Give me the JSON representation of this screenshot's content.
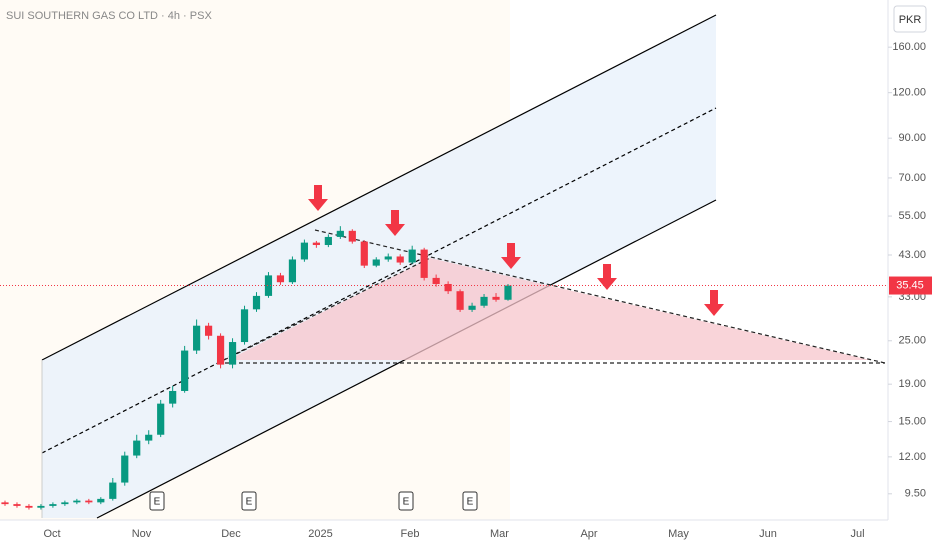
{
  "chart_data": {
    "type": "candlestick",
    "title": "SUI SOUTHERN GAS CO LTD · 4h · PSX",
    "currency": "PKR",
    "log_scale": true,
    "up_color": "#089981",
    "down_color": "#f23645",
    "categories": [
      "Oct",
      "Nov",
      "Dec",
      "2025",
      "Feb",
      "Mar",
      "Apr",
      "May",
      "Jun",
      "Jul"
    ],
    "open": [
      9.0,
      8.9,
      8.8,
      8.7,
      8.8,
      8.9,
      9.0,
      9.1,
      9.0,
      9.2,
      10.2,
      12.1,
      13.3,
      13.8,
      16.8,
      18.2,
      23.5,
      27.5,
      25.8,
      21.5,
      24.8,
      30.5,
      33.2,
      37.8,
      36.2,
      41.8,
      46.5,
      45.8,
      48.2,
      50.1,
      46.8,
      40.2,
      41.8,
      42.6,
      41.0,
      44.5,
      37.2,
      35.8,
      34.2,
      30.4,
      31.2,
      33.0,
      32.4
    ],
    "high": [
      9.1,
      9.0,
      8.9,
      8.9,
      9.0,
      9.1,
      9.2,
      9.2,
      9.3,
      10.5,
      12.4,
      13.8,
      14.2,
      17.2,
      18.8,
      24.2,
      28.6,
      28.0,
      26.2,
      25.4,
      31.2,
      34.0,
      38.6,
      38.4,
      42.6,
      47.4,
      47.0,
      49.0,
      51.6,
      50.6,
      47.2,
      42.4,
      43.4,
      43.2,
      45.6,
      45.0,
      38.0,
      36.4,
      34.6,
      31.8,
      33.6,
      33.8,
      35.8
    ],
    "low": [
      8.8,
      8.7,
      8.6,
      8.6,
      8.7,
      8.8,
      8.9,
      8.9,
      8.9,
      9.1,
      10.0,
      11.9,
      13.0,
      13.6,
      16.4,
      18.0,
      23.0,
      25.2,
      21.0,
      21.0,
      24.4,
      30.0,
      32.8,
      35.6,
      35.8,
      41.2,
      45.0,
      45.2,
      47.6,
      46.2,
      39.6,
      39.8,
      41.2,
      40.4,
      40.6,
      36.6,
      35.2,
      33.6,
      30.0,
      30.0,
      30.8,
      32.0,
      32.2
    ],
    "close": [
      8.9,
      8.8,
      8.7,
      8.8,
      8.9,
      9.0,
      9.1,
      9.0,
      9.2,
      10.2,
      12.1,
      13.3,
      13.8,
      16.8,
      18.2,
      23.5,
      27.5,
      25.8,
      21.5,
      24.8,
      30.5,
      33.2,
      37.8,
      36.2,
      41.8,
      46.5,
      45.8,
      48.2,
      50.1,
      46.8,
      40.2,
      41.8,
      42.6,
      41.0,
      44.5,
      37.2,
      35.8,
      34.2,
      30.4,
      31.2,
      33.0,
      32.4,
      35.45
    ],
    "last_price": 35.45,
    "earnings_markers": [
      "E",
      "E",
      "E",
      "E"
    ],
    "ylim": [
      8.05,
      215.6
    ],
    "yticks": [
      {
        "value": 9.5,
        "label": "9.50"
      },
      {
        "value": 12,
        "label": "12.00"
      },
      {
        "value": 15,
        "label": "15.00"
      },
      {
        "value": 19,
        "label": "19.00"
      },
      {
        "value": 25,
        "label": "25.00"
      },
      {
        "value": 33,
        "label": "33.00"
      },
      {
        "value": 43,
        "label": "43.00"
      },
      {
        "value": 55,
        "label": "55.00"
      },
      {
        "value": 70,
        "label": "70.00"
      },
      {
        "value": 90,
        "label": "90.00"
      },
      {
        "value": 120,
        "label": "120.00"
      },
      {
        "value": 160,
        "label": "160.00"
      }
    ]
  }
}
